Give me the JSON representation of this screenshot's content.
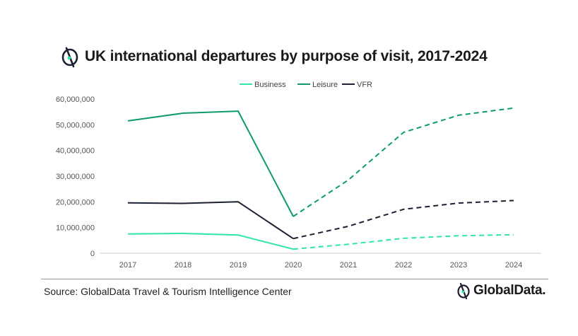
{
  "header": {
    "title": "UK international departures by purpose of visit, 2017-2024"
  },
  "footer": {
    "source": "Source: GlobalData Travel & Tourism Intelligence Center",
    "logo_text": "GlobalData."
  },
  "chart_data": {
    "type": "line",
    "title": "UK international departures by purpose of visit, 2017-2024",
    "xlabel": "",
    "ylabel": "",
    "categories": [
      "2017",
      "2018",
      "2019",
      "2020",
      "2021",
      "2022",
      "2023",
      "2024"
    ],
    "ylim": [
      0,
      60000000
    ],
    "yticks": [
      0,
      10000000,
      20000000,
      30000000,
      40000000,
      50000000,
      60000000
    ],
    "ytick_labels": [
      "0",
      "10,000,000",
      "20,000,000",
      "30,000,000",
      "40,000,000",
      "50,000,000",
      "60,000,000"
    ],
    "grid": false,
    "legend": "top-center",
    "forecast_from": "2020",
    "line_style": {
      "actual": "solid",
      "forecast": "dashed"
    },
    "series": [
      {
        "name": "Business",
        "color": "#2ee6a8",
        "values": [
          7500000,
          7700000,
          7100000,
          1600000,
          3500000,
          5800000,
          6800000,
          7200000
        ]
      },
      {
        "name": "Leisure",
        "color": "#0e9a6e",
        "values": [
          51500000,
          54500000,
          55300000,
          14300000,
          28500000,
          47000000,
          53700000,
          56500000
        ]
      },
      {
        "name": "VFR",
        "color": "#1c2033",
        "values": [
          19600000,
          19400000,
          20000000,
          5700000,
          10500000,
          17100000,
          19500000,
          20500000
        ]
      }
    ]
  }
}
